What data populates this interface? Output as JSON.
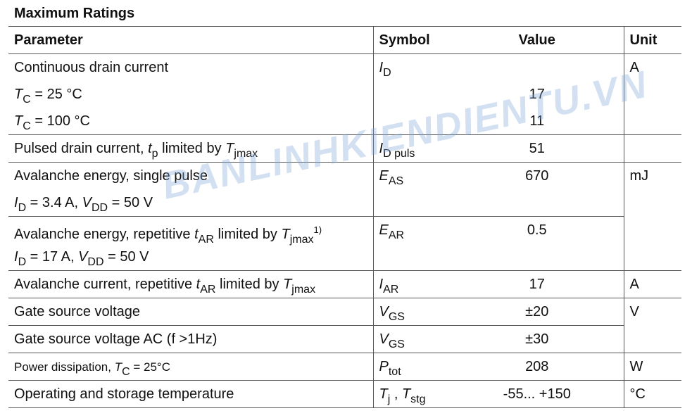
{
  "title": "Maximum Ratings",
  "header": [
    "Parameter",
    "Symbol",
    "Value",
    "Unit"
  ],
  "watermark": "BANLINHKIENDIENTU.VN",
  "rows": [
    {
      "parameter": [
        [
          "Continuous drain current"
        ],
        [
          {
            "text": "T",
            "style": "italic"
          },
          {
            "text": "C",
            "style": "sub"
          },
          " = 25 °C"
        ],
        [
          {
            "text": "T",
            "style": "italic"
          },
          {
            "text": "C",
            "style": "sub"
          },
          " = 100 °C"
        ]
      ],
      "symbol": [
        {
          "text": "I",
          "style": "italic"
        },
        {
          "text": "D",
          "style": "sub"
        }
      ],
      "value": [
        null,
        "17",
        "11"
      ],
      "unit": "A",
      "unit_rows": 1
    },
    {
      "parameter": [
        [
          "Pulsed drain current, ",
          {
            "text": "t",
            "style": "italic"
          },
          {
            "text": "p",
            "style": "sub"
          },
          " limited by ",
          {
            "text": "T",
            "style": "italic"
          },
          {
            "text": "jmax",
            "style": "sub"
          }
        ]
      ],
      "symbol": [
        {
          "text": "I",
          "style": "italic"
        },
        {
          "text": "D puls",
          "style": "sub"
        }
      ],
      "value": [
        "51"
      ],
      "unit_rows": 1
    },
    {
      "parameter": [
        [
          "Avalanche energy, single pulse"
        ],
        [
          {
            "text": "I",
            "style": "italic"
          },
          {
            "text": "D",
            "style": "sub"
          },
          " = 3.4 A, ",
          {
            "text": "V",
            "style": "italic"
          },
          {
            "text": "DD",
            "style": "sub"
          },
          " = 50 V"
        ]
      ],
      "symbol": [
        {
          "text": "E",
          "style": "italic"
        },
        {
          "text": "AS",
          "style": "sub"
        }
      ],
      "value": [
        "670"
      ],
      "unit": "mJ",
      "unit_rows": 2
    },
    {
      "parameter": [
        [
          "Avalanche energy, repetitive ",
          {
            "text": "t",
            "style": "italic"
          },
          {
            "text": "AR",
            "style": "sub"
          },
          " limited by ",
          {
            "text": "T",
            "style": "italic"
          },
          {
            "text": "jmax",
            "style": "sub"
          },
          {
            "text": "1)",
            "style": "sup"
          }
        ],
        [
          {
            "text": "I",
            "style": "italic"
          },
          {
            "text": "D",
            "style": "sub"
          },
          " = 17 A, ",
          {
            "text": "V",
            "style": "italic"
          },
          {
            "text": "DD",
            "style": "sub"
          },
          " = 50 V"
        ]
      ],
      "symbol": [
        {
          "text": "E",
          "style": "italic"
        },
        {
          "text": "AR",
          "style": "sub"
        }
      ],
      "value": [
        "0.5"
      ]
    },
    {
      "parameter": [
        [
          "Avalanche current, repetitive ",
          {
            "text": "t",
            "style": "italic"
          },
          {
            "text": "AR",
            "style": "sub"
          },
          " limited by ",
          {
            "text": "T",
            "style": "italic"
          },
          {
            "text": "jmax",
            "style": "sub"
          }
        ]
      ],
      "symbol": [
        {
          "text": "I",
          "style": "italic"
        },
        {
          "text": "AR",
          "style": "sub"
        }
      ],
      "value": [
        "17"
      ],
      "unit": "A",
      "unit_rows": 1
    },
    {
      "parameter": [
        [
          "Gate source voltage"
        ]
      ],
      "symbol": [
        {
          "text": "V",
          "style": "italic"
        },
        {
          "text": "GS",
          "style": "sub"
        }
      ],
      "value": [
        "±20"
      ],
      "unit": "V",
      "unit_rows": 2
    },
    {
      "parameter": [
        [
          "Gate source voltage AC (f >1Hz)"
        ]
      ],
      "symbol": [
        {
          "text": "V",
          "style": "italic"
        },
        {
          "text": "GS",
          "style": "sub"
        }
      ],
      "value": [
        "±30"
      ]
    },
    {
      "parameter": [
        [
          {
            "text": "Power dissipation, ",
            "style": "small"
          },
          {
            "text": "T",
            "style": "small-italic"
          },
          {
            "text": "C",
            "style": "sub"
          },
          {
            "text": " = 25°C",
            "style": "small"
          }
        ]
      ],
      "symbol": [
        {
          "text": "P",
          "style": "italic"
        },
        {
          "text": "tot",
          "style": "sub"
        }
      ],
      "value": [
        "208"
      ],
      "unit": "W",
      "unit_rows": 1
    },
    {
      "parameter": [
        [
          "Operating and storage temperature"
        ]
      ],
      "symbol": [
        {
          "text": "T",
          "style": "italic"
        },
        {
          "text": "j",
          "style": "sub"
        },
        " , ",
        {
          "text": "T",
          "style": "italic"
        },
        {
          "text": "stg",
          "style": "sub"
        }
      ],
      "value": [
        "-55... +150"
      ],
      "unit": "°C",
      "unit_rows": 1
    }
  ]
}
